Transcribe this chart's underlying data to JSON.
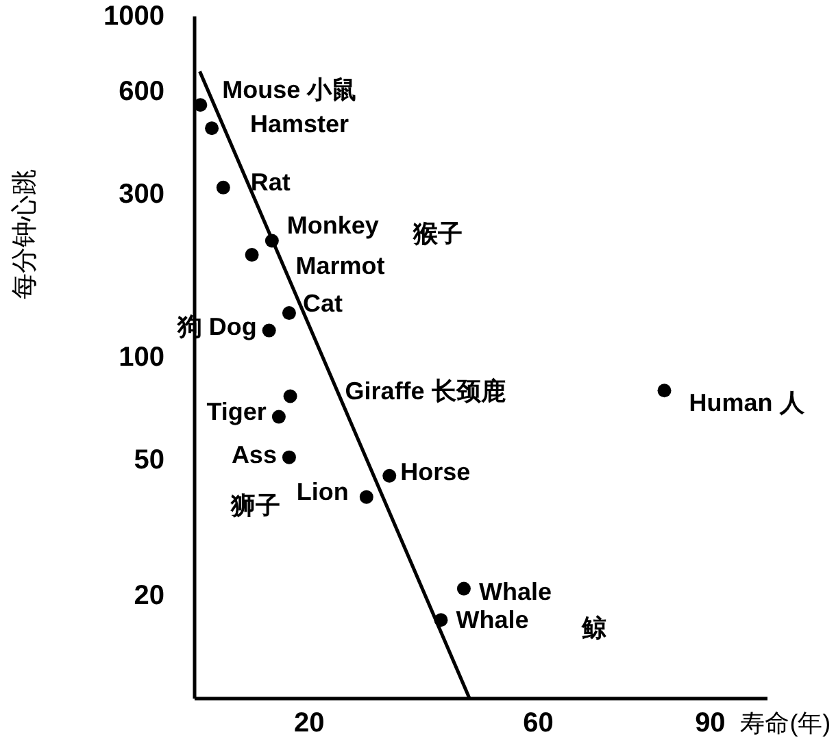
{
  "chart_data": {
    "type": "scatter",
    "xlabel": "寿命(年)",
    "ylabel": "每分钟心跳",
    "xlim": [
      0,
      100
    ],
    "xticks": [
      20,
      60,
      90
    ],
    "ylim": [
      10,
      1000
    ],
    "yticks": [
      20,
      50,
      100,
      300,
      600,
      1000
    ],
    "log": "y",
    "marker": "circle",
    "grid": false,
    "series": [
      {
        "color": "#000000",
        "x": [
          1,
          3,
          5,
          13.5,
          10,
          16.5,
          13,
          16.7,
          14.7,
          16.5,
          30,
          34,
          47,
          43,
          82
        ],
        "values": [
          550,
          470,
          315,
          220,
          200,
          135,
          120,
          77,
          67,
          51,
          39,
          45,
          21,
          17,
          80
        ]
      },
      {
        "type": "line",
        "color": "#000000",
        "marker": "none",
        "x": [
          0.9,
          48
        ],
        "values": [
          690,
          10
        ]
      }
    ],
    "annotations": [
      {
        "text": "Mouse 小鼠",
        "x": 1,
        "y": 550
      },
      {
        "text": "Hamster",
        "x": 3,
        "y": 470
      },
      {
        "text": "Rat",
        "x": 5,
        "y": 315
      },
      {
        "text": "Monkey",
        "x": 13.5,
        "y": 220
      },
      "猴子",
      {
        "text": "Marmot",
        "x": 10,
        "y": 200
      },
      {
        "text": "Cat",
        "x": 16.5,
        "y": 135
      },
      {
        "text": "狗 Dog",
        "x": 13,
        "y": 120
      },
      {
        "text": "Giraffe 长颈鹿",
        "x": 16.7,
        "y": 77
      },
      {
        "text": "Tiger",
        "x": 14.7,
        "y": 67
      },
      {
        "text": "Ass",
        "x": 16.5,
        "y": 51
      },
      {
        "text": "Lion",
        "x": 30,
        "y": 39
      },
      "狮子",
      {
        "text": "Horse",
        "x": 34,
        "y": 45
      },
      {
        "text": "Whale",
        "x": 47,
        "y": 21
      },
      {
        "text": "Whale",
        "x": 43,
        "y": 17
      },
      "鲸",
      {
        "text": "Human 人",
        "x": 82,
        "y": 80
      }
    ]
  }
}
